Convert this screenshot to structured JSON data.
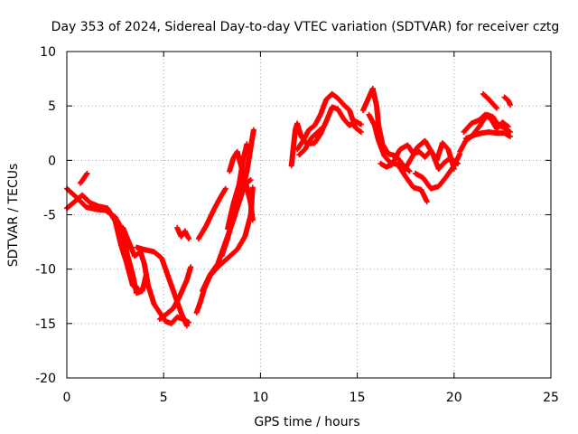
{
  "chart_data": {
    "type": "scatter",
    "title": "Day 353 of 2024, Sidereal Day-to-day VTEC variation (SDTVAR) for receiver cztg",
    "xlabel": "GPS time / hours",
    "ylabel": "SDTVAR / TECUs",
    "xlim": [
      0,
      25
    ],
    "ylim": [
      -20,
      10
    ],
    "xticks": [
      0,
      5,
      10,
      15,
      20,
      25
    ],
    "yticks": [
      -20,
      -15,
      -10,
      -5,
      0,
      5,
      10
    ],
    "grid": true,
    "marker": "+",
    "series": [
      {
        "name": "SDTVAR",
        "color": "#ff0000",
        "tracks": [
          [
            [
              0.0,
              -2.6
            ],
            [
              0.5,
              -3.4
            ],
            [
              1.0,
              -4.3
            ],
            [
              1.5,
              -4.5
            ],
            [
              2.0,
              -4.6
            ],
            [
              2.5,
              -5.2
            ],
            [
              2.9,
              -6.5
            ],
            [
              3.1,
              -8.5
            ],
            [
              3.4,
              -10.5
            ],
            [
              3.6,
              -12.2
            ],
            [
              3.9,
              -12.0
            ],
            [
              4.1,
              -10.5
            ]
          ],
          [
            [
              0.0,
              -4.4
            ],
            [
              0.4,
              -3.8
            ],
            [
              0.8,
              -3.2
            ],
            [
              1.2,
              -3.9
            ],
            [
              1.6,
              -4.2
            ],
            [
              2.1,
              -4.4
            ],
            [
              2.5,
              -5.6
            ],
            [
              2.8,
              -7.8
            ],
            [
              3.1,
              -9.5
            ],
            [
              3.4,
              -11.5
            ],
            [
              3.7,
              -11.8
            ]
          ],
          [
            [
              0.7,
              -2.1
            ],
            [
              0.9,
              -1.6
            ],
            [
              1.05,
              -1.2
            ]
          ],
          [
            [
              2.9,
              -6.2
            ],
            [
              3.2,
              -7.5
            ],
            [
              3.5,
              -8.8
            ],
            [
              3.8,
              -8.4
            ],
            [
              4.0,
              -9.5
            ],
            [
              4.2,
              -11.5
            ],
            [
              4.5,
              -13.2
            ],
            [
              4.8,
              -14.0
            ],
            [
              5.1,
              -14.8
            ],
            [
              5.4,
              -15.0
            ],
            [
              5.7,
              -14.4
            ],
            [
              6.0,
              -14.6
            ],
            [
              6.3,
              -14.9
            ]
          ],
          [
            [
              3.6,
              -8.0
            ],
            [
              4.0,
              -8.2
            ],
            [
              4.5,
              -8.4
            ],
            [
              4.9,
              -9.0
            ],
            [
              5.2,
              -10.5
            ],
            [
              5.6,
              -12.5
            ],
            [
              5.9,
              -14.0
            ],
            [
              6.2,
              -15.2
            ]
          ],
          [
            [
              4.8,
              -14.6
            ],
            [
              5.1,
              -14.2
            ],
            [
              5.5,
              -13.6
            ],
            [
              5.8,
              -12.6
            ],
            [
              6.2,
              -11.0
            ],
            [
              6.4,
              -9.8
            ]
          ],
          [
            [
              5.7,
              -6.2
            ],
            [
              5.9,
              -7.0
            ],
            [
              6.1,
              -6.5
            ],
            [
              6.3,
              -7.2
            ]
          ],
          [
            [
              6.8,
              -7.2
            ],
            [
              7.2,
              -6.0
            ],
            [
              7.6,
              -4.5
            ],
            [
              7.9,
              -3.5
            ],
            [
              8.2,
              -2.6
            ]
          ],
          [
            [
              6.7,
              -14.0
            ],
            [
              6.9,
              -13.0
            ],
            [
              7.1,
              -11.8
            ],
            [
              7.4,
              -10.6
            ],
            [
              7.8,
              -9.8
            ],
            [
              8.3,
              -9.0
            ],
            [
              8.8,
              -8.2
            ],
            [
              9.2,
              -7.0
            ],
            [
              9.5,
              -5.0
            ],
            [
              9.6,
              -2.5
            ]
          ],
          [
            [
              7.0,
              -12.0
            ],
            [
              7.4,
              -10.5
            ],
            [
              7.8,
              -9.5
            ],
            [
              8.2,
              -7.5
            ],
            [
              8.6,
              -5.5
            ],
            [
              9.0,
              -3.2
            ],
            [
              9.3,
              -1.0
            ],
            [
              9.5,
              1.2
            ],
            [
              9.65,
              2.8
            ]
          ],
          [
            [
              8.0,
              -8.8
            ],
            [
              8.3,
              -7.2
            ],
            [
              8.6,
              -5.2
            ],
            [
              8.9,
              -3.8
            ],
            [
              9.2,
              -2.2
            ],
            [
              9.5,
              -1.8
            ]
          ],
          [
            [
              8.3,
              -6.3
            ],
            [
              8.6,
              -4.0
            ],
            [
              8.9,
              -2.2
            ],
            [
              9.1,
              0.0
            ],
            [
              9.3,
              1.5
            ]
          ],
          [
            [
              8.4,
              -1.0
            ],
            [
              8.6,
              0.2
            ],
            [
              8.8,
              0.8
            ],
            [
              9.0,
              -0.5
            ],
            [
              9.3,
              -2.5
            ],
            [
              9.5,
              -4.0
            ],
            [
              9.6,
              -5.5
            ]
          ],
          [
            [
              11.6,
              -0.5
            ],
            [
              11.7,
              1.2
            ],
            [
              11.8,
              2.8
            ],
            [
              11.9,
              3.4
            ],
            [
              12.1,
              2.2
            ],
            [
              12.4,
              1.5
            ],
            [
              12.8,
              1.6
            ],
            [
              13.1,
              2.4
            ],
            [
              13.4,
              3.6
            ],
            [
              13.7,
              4.9
            ],
            [
              14.0,
              4.7
            ],
            [
              14.3,
              3.8
            ],
            [
              14.6,
              3.2
            ],
            [
              14.9,
              3.6
            ],
            [
              15.2,
              3.3
            ]
          ],
          [
            [
              11.9,
              1.0
            ],
            [
              12.2,
              1.8
            ],
            [
              12.5,
              2.8
            ],
            [
              12.8,
              3.2
            ],
            [
              13.1,
              4.2
            ],
            [
              13.4,
              5.6
            ],
            [
              13.7,
              6.1
            ],
            [
              14.0,
              5.7
            ],
            [
              14.3,
              5.1
            ],
            [
              14.6,
              4.6
            ],
            [
              14.9,
              3.0
            ],
            [
              15.2,
              2.6
            ]
          ],
          [
            [
              12.0,
              0.5
            ],
            [
              12.3,
              1.0
            ],
            [
              12.6,
              2.0
            ],
            [
              12.9,
              2.5
            ],
            [
              13.2,
              3.0
            ]
          ],
          [
            [
              15.3,
              4.6
            ],
            [
              15.6,
              5.8
            ],
            [
              15.8,
              6.6
            ],
            [
              16.0,
              5.0
            ],
            [
              16.1,
              3.2
            ],
            [
              16.3,
              1.5
            ],
            [
              16.6,
              0.6
            ],
            [
              17.0,
              0.4
            ],
            [
              17.4,
              -0.5
            ],
            [
              17.7,
              -1.0
            ]
          ],
          [
            [
              15.6,
              4.2
            ],
            [
              15.9,
              3.2
            ],
            [
              16.1,
              1.8
            ],
            [
              16.4,
              0.4
            ],
            [
              16.7,
              -0.2
            ],
            [
              17.1,
              -0.4
            ],
            [
              17.5,
              -1.5
            ],
            [
              17.9,
              -2.5
            ],
            [
              18.3,
              -2.7
            ],
            [
              18.6,
              -3.8
            ]
          ],
          [
            [
              16.2,
              -0.3
            ],
            [
              16.5,
              -0.6
            ],
            [
              16.8,
              -0.4
            ],
            [
              17.2,
              1.0
            ],
            [
              17.6,
              1.4
            ],
            [
              17.9,
              0.6
            ],
            [
              18.2,
              0.8
            ],
            [
              18.5,
              0.3
            ],
            [
              18.8,
              0.9
            ],
            [
              19.1,
              0.0
            ],
            [
              19.4,
              1.6
            ],
            [
              19.7,
              1.0
            ],
            [
              20.0,
              -0.8
            ]
          ],
          [
            [
              17.4,
              -1.0
            ],
            [
              17.8,
              0.2
            ],
            [
              18.1,
              1.2
            ],
            [
              18.5,
              1.8
            ],
            [
              18.9,
              0.6
            ],
            [
              19.2,
              -0.8
            ],
            [
              19.5,
              -0.2
            ],
            [
              19.8,
              0.2
            ],
            [
              20.2,
              -0.3
            ]
          ],
          [
            [
              18.0,
              -1.2
            ],
            [
              18.4,
              -1.6
            ],
            [
              18.8,
              -2.6
            ],
            [
              19.2,
              -2.4
            ],
            [
              19.6,
              -1.5
            ],
            [
              20.0,
              -0.5
            ],
            [
              20.3,
              0.6
            ]
          ],
          [
            [
              20.3,
              0.8
            ],
            [
              20.6,
              1.8
            ],
            [
              20.9,
              2.2
            ],
            [
              21.3,
              3.1
            ],
            [
              21.7,
              4.2
            ],
            [
              22.0,
              4.0
            ],
            [
              22.3,
              3.2
            ],
            [
              22.6,
              3.0
            ],
            [
              22.9,
              2.6
            ]
          ],
          [
            [
              20.5,
              2.6
            ],
            [
              20.9,
              3.4
            ],
            [
              21.3,
              3.7
            ],
            [
              21.6,
              4.2
            ],
            [
              21.9,
              3.8
            ],
            [
              22.2,
              2.9
            ],
            [
              22.5,
              3.5
            ],
            [
              22.8,
              3.1
            ]
          ],
          [
            [
              20.6,
              2.0
            ],
            [
              21.0,
              2.3
            ],
            [
              21.4,
              2.5
            ],
            [
              21.8,
              2.6
            ],
            [
              22.2,
              2.5
            ],
            [
              22.6,
              2.5
            ],
            [
              22.9,
              2.2
            ]
          ],
          [
            [
              21.5,
              6.1
            ],
            [
              21.8,
              5.6
            ],
            [
              22.0,
              5.2
            ],
            [
              22.2,
              4.8
            ]
          ],
          [
            [
              22.6,
              5.8
            ],
            [
              22.8,
              5.5
            ],
            [
              22.9,
              5.1
            ]
          ]
        ]
      }
    ]
  }
}
